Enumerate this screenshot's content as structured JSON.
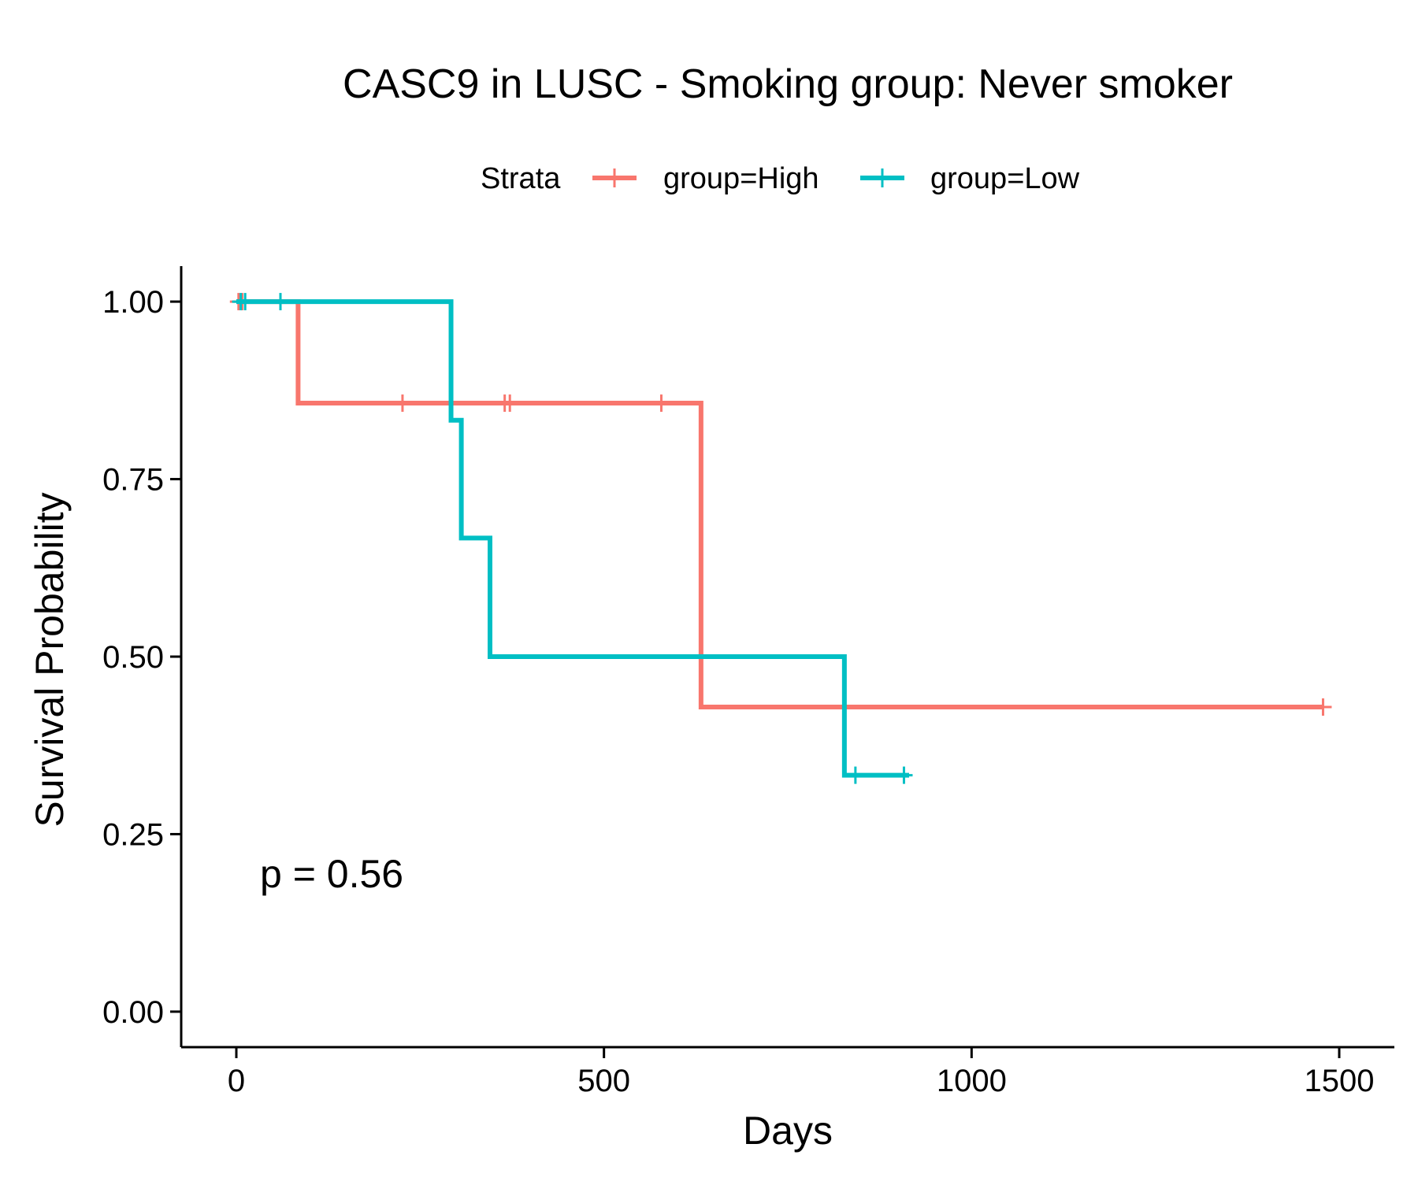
{
  "chart_data": {
    "type": "line",
    "subtype": "kaplan-meier-step",
    "title": "CASC9 in LUSC - Smoking group: Never smoker",
    "xlabel": "Days",
    "ylabel": "Survival Probability",
    "xlim": [
      -75,
      1575
    ],
    "ylim": [
      -0.05,
      1.05
    ],
    "x_ticks": [
      0,
      500,
      1000,
      1500
    ],
    "y_ticks": [
      0.0,
      0.25,
      0.5,
      0.75,
      1.0
    ],
    "x_tick_labels": [
      "0",
      "500",
      "1000",
      "1500"
    ],
    "y_tick_labels": [
      "0.00",
      "0.25",
      "0.50",
      "0.75",
      "1.00"
    ],
    "grid": false,
    "legend": {
      "title": "Strata",
      "position": "top"
    },
    "annotation": "p = 0.56",
    "series": [
      {
        "name": "group=High",
        "color": "#F8766D",
        "steps": [
          {
            "x": 0,
            "y": 1.0
          },
          {
            "x": 84,
            "y": 0.857
          },
          {
            "x": 632,
            "y": 0.429
          },
          {
            "x": 1478,
            "y": 0.429
          }
        ],
        "censors": [
          {
            "x": 3,
            "y": 1.0
          },
          {
            "x": 8,
            "y": 1.0
          },
          {
            "x": 226,
            "y": 0.857
          },
          {
            "x": 365,
            "y": 0.857
          },
          {
            "x": 372,
            "y": 0.857
          },
          {
            "x": 578,
            "y": 0.857
          },
          {
            "x": 1478,
            "y": 0.429
          }
        ]
      },
      {
        "name": "group=Low",
        "color": "#00BFC4",
        "steps": [
          {
            "x": 0,
            "y": 1.0
          },
          {
            "x": 292,
            "y": 0.833
          },
          {
            "x": 306,
            "y": 0.667
          },
          {
            "x": 345,
            "y": 0.5
          },
          {
            "x": 827,
            "y": 0.333
          },
          {
            "x": 915,
            "y": 0.333
          }
        ],
        "censors": [
          {
            "x": 6,
            "y": 1.0
          },
          {
            "x": 12,
            "y": 1.0
          },
          {
            "x": 60,
            "y": 1.0
          },
          {
            "x": 842,
            "y": 0.333
          },
          {
            "x": 908,
            "y": 0.333
          }
        ]
      }
    ]
  }
}
